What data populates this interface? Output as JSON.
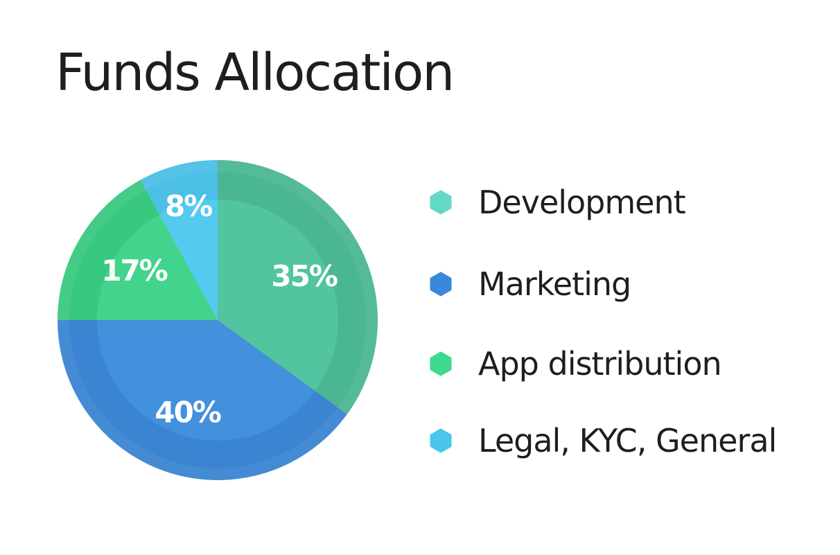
{
  "title": "Funds Allocation",
  "colors": {
    "text": "#1e1e1e",
    "slice_label": "#ffffff"
  },
  "chart_data": {
    "type": "pie",
    "title": "Funds Allocation",
    "legend_position": "right",
    "slices": [
      {
        "label": "Development",
        "value": 35,
        "display": "35%",
        "color": "#52c4a0",
        "ring_color": "#4ab693",
        "legend_color": "#62d8c6",
        "legend_icon": "hexagon-icon"
      },
      {
        "label": "Marketing",
        "value": 40,
        "display": "40%",
        "color": "#4390dc",
        "ring_color": "#3a84d1",
        "legend_color": "#3a88dc",
        "legend_icon": "hexagon-icon"
      },
      {
        "label": "App distribution",
        "value": 17,
        "display": "17%",
        "color": "#42d48c",
        "ring_color": "#38c880",
        "legend_color": "#3ed88e",
        "legend_icon": "hexagon-icon"
      },
      {
        "label": "Legal, KYC, General",
        "value": 8,
        "display": "8%",
        "color": "#54caf0",
        "ring_color": "#4bbfe6",
        "legend_color": "#4ac5eb",
        "legend_icon": "hexagon-icon"
      }
    ]
  }
}
